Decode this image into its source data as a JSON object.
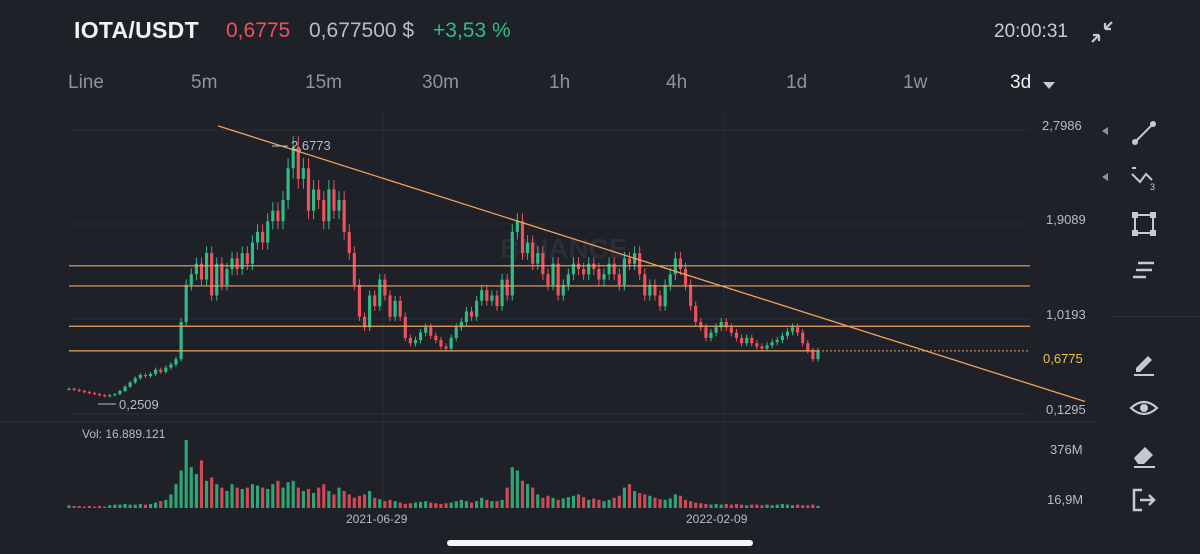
{
  "header": {
    "pair": "IOTA/USDT",
    "price": "0,6775",
    "usd_price": "0,677500 $",
    "change": "+3,53 %",
    "time": "20:00:31"
  },
  "intervals": [
    "Line",
    "5m",
    "15m",
    "30m",
    "1h",
    "4h",
    "1d",
    "1w",
    "3d"
  ],
  "active_interval": "3d",
  "chart": {
    "watermark": "BINANCE",
    "y_labels": [
      "2,7986",
      "1,9089",
      "1,0193",
      "0,1295"
    ],
    "current_price_label": "0,6775",
    "high_label": "2,6773",
    "low_label": "0,2509",
    "x_labels": [
      "2021-06-29",
      "2022-02-09"
    ],
    "volume_label": "Vol: 16.889.121",
    "volume_y_labels": [
      "376M",
      "16,9M"
    ]
  },
  "chart_data": {
    "type": "candlestick",
    "interval": "3d",
    "y_range": [
      0.1295,
      2.7986
    ],
    "volume_range_labels": [
      "16,9M",
      "376M"
    ],
    "close": [
      0.32,
      0.31,
      0.3,
      0.29,
      0.28,
      0.27,
      0.26,
      0.25,
      0.26,
      0.27,
      0.3,
      0.34,
      0.38,
      0.42,
      0.45,
      0.44,
      0.46,
      0.5,
      0.48,
      0.52,
      0.55,
      0.6,
      0.95,
      1.3,
      1.4,
      1.5,
      1.35,
      1.6,
      1.2,
      1.5,
      1.3,
      1.45,
      1.55,
      1.45,
      1.6,
      1.5,
      1.7,
      1.8,
      1.7,
      1.9,
      2.0,
      1.9,
      2.1,
      2.4,
      2.6,
      2.3,
      2.4,
      2.0,
      2.2,
      2.1,
      1.9,
      2.2,
      2.0,
      2.1,
      1.8,
      1.6,
      1.3,
      1.0,
      0.9,
      1.2,
      1.1,
      1.35,
      1.2,
      1.0,
      1.15,
      1.0,
      0.8,
      0.75,
      0.78,
      0.85,
      0.9,
      0.82,
      0.78,
      0.72,
      0.7,
      0.8,
      0.9,
      0.95,
      1.05,
      1.0,
      1.15,
      1.25,
      1.15,
      1.2,
      1.1,
      1.35,
      1.2,
      1.8,
      1.9,
      1.6,
      1.7,
      1.5,
      1.6,
      1.4,
      1.3,
      1.5,
      1.2,
      1.3,
      1.4,
      1.5,
      1.45,
      1.4,
      1.5,
      1.45,
      1.35,
      1.4,
      1.5,
      1.4,
      1.3,
      1.55,
      1.5,
      1.6,
      1.4,
      1.2,
      1.3,
      1.2,
      1.1,
      1.3,
      1.4,
      1.55,
      1.45,
      1.3,
      1.1,
      0.95,
      0.9,
      0.8,
      0.85,
      0.9,
      0.95,
      0.9,
      0.85,
      0.8,
      0.75,
      0.8,
      0.75,
      0.72,
      0.7,
      0.73,
      0.76,
      0.78,
      0.82,
      0.86,
      0.9,
      0.85,
      0.75,
      0.68,
      0.6,
      0.68
    ],
    "volume_relative": [
      0.04,
      0.03,
      0.03,
      0.02,
      0.03,
      0.02,
      0.03,
      0.02,
      0.04,
      0.05,
      0.05,
      0.06,
      0.05,
      0.05,
      0.06,
      0.05,
      0.06,
      0.08,
      0.1,
      0.12,
      0.2,
      0.35,
      0.55,
      1.0,
      0.6,
      0.5,
      0.7,
      0.4,
      0.45,
      0.35,
      0.3,
      0.25,
      0.35,
      0.3,
      0.28,
      0.3,
      0.35,
      0.33,
      0.3,
      0.28,
      0.35,
      0.4,
      0.3,
      0.38,
      0.4,
      0.3,
      0.25,
      0.28,
      0.22,
      0.3,
      0.35,
      0.25,
      0.2,
      0.3,
      0.25,
      0.2,
      0.15,
      0.18,
      0.2,
      0.25,
      0.15,
      0.13,
      0.1,
      0.12,
      0.1,
      0.08,
      0.06,
      0.07,
      0.08,
      0.09,
      0.1,
      0.08,
      0.07,
      0.06,
      0.07,
      0.08,
      0.1,
      0.12,
      0.1,
      0.08,
      0.1,
      0.15,
      0.12,
      0.1,
      0.1,
      0.12,
      0.3,
      0.6,
      0.55,
      0.4,
      0.35,
      0.3,
      0.2,
      0.15,
      0.18,
      0.15,
      0.12,
      0.14,
      0.16,
      0.18,
      0.2,
      0.16,
      0.12,
      0.14,
      0.12,
      0.1,
      0.12,
      0.15,
      0.18,
      0.3,
      0.35,
      0.25,
      0.22,
      0.2,
      0.18,
      0.15,
      0.13,
      0.12,
      0.14,
      0.2,
      0.18,
      0.12,
      0.1,
      0.08,
      0.07,
      0.06,
      0.05,
      0.06,
      0.05,
      0.06,
      0.05,
      0.06,
      0.05,
      0.04,
      0.05,
      0.05,
      0.04,
      0.05,
      0.04,
      0.05,
      0.06,
      0.05,
      0.04,
      0.05,
      0.04,
      0.04,
      0.05,
      0.03
    ],
    "horizontal_levels": [
      1.48,
      1.29,
      0.91,
      0.6775
    ],
    "trendline": [
      {
        "x": "start",
        "y": 2.8
      },
      {
        "x": "end",
        "y": 0.2
      }
    ],
    "labels": {
      "high": "2,6773",
      "low": "0,2509",
      "current": "0,6775"
    },
    "x_ticks": [
      "2021-06-29",
      "2022-02-09"
    ],
    "colors": {
      "up": "#2fbd85",
      "down": "#f0515f",
      "levels": "#f0a35c",
      "background": "#1e2127"
    }
  },
  "tools": [
    "line-tool-icon",
    "fib-tool-icon",
    "shape-tool-icon",
    "indicator-tool-icon",
    "pencil-icon",
    "eye-icon",
    "eraser-icon",
    "exit-icon"
  ]
}
